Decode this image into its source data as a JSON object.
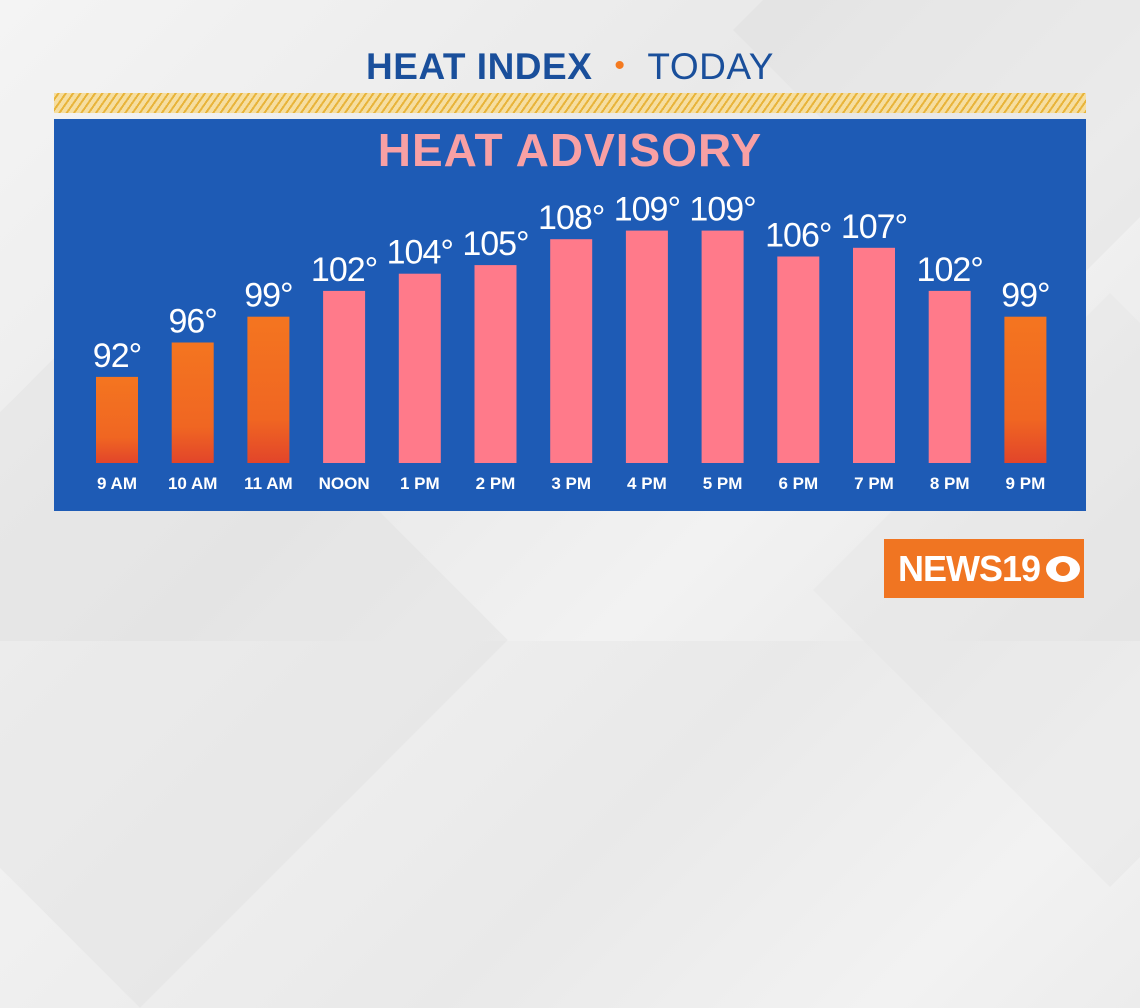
{
  "header": {
    "title_main": "HEAT INDEX",
    "title_dot": "•",
    "title_sub": "TODAY"
  },
  "banner": {
    "text": "HEAT ADVISORY"
  },
  "logo": {
    "text": "NEWS19",
    "icon": "cbs-eye-icon"
  },
  "colors": {
    "title": "#1a4f9b",
    "accent": "#f47a20",
    "panel": "#1e5bb5",
    "advisory_text": "#f8a0a4",
    "bar_advisory": "#ff7a8a",
    "bar_normal_top": "#f47520",
    "bar_normal_bottom": "#e4482a"
  },
  "chart_data": {
    "type": "bar",
    "title": "HEAT INDEX • TODAY",
    "categories": [
      "9 AM",
      "10 AM",
      "11 AM",
      "NOON",
      "1 PM",
      "2 PM",
      "3 PM",
      "4 PM",
      "5 PM",
      "6 PM",
      "7 PM",
      "8 PM",
      "9 PM"
    ],
    "values": [
      92,
      96,
      99,
      102,
      104,
      105,
      108,
      109,
      109,
      106,
      107,
      102,
      99
    ],
    "value_labels": [
      "92°",
      "96°",
      "99°",
      "102°",
      "104°",
      "105°",
      "108°",
      "109°",
      "109°",
      "106°",
      "107°",
      "102°",
      "99°"
    ],
    "advisory": [
      false,
      false,
      false,
      true,
      true,
      true,
      true,
      true,
      true,
      true,
      true,
      true,
      false
    ],
    "ylim": [
      82,
      115
    ],
    "grid": false,
    "legend": "none"
  }
}
